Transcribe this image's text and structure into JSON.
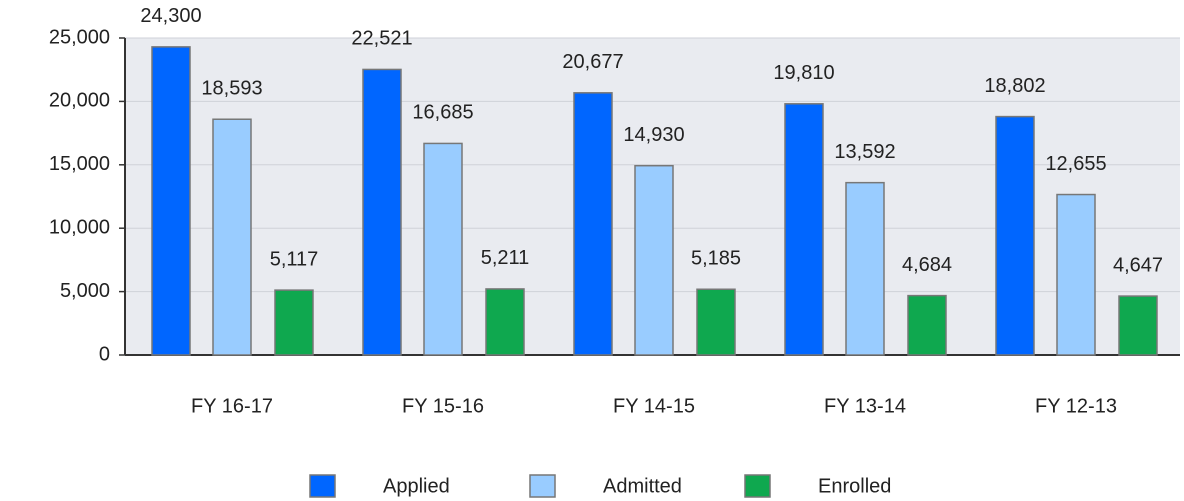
{
  "chart_data": {
    "type": "bar",
    "categories": [
      "FY 16-17",
      "FY 15-16",
      "FY 14-15",
      "FY 13-14",
      "FY 12-13"
    ],
    "series": [
      {
        "name": "Applied",
        "color": "#0066ff",
        "values": [
          24300,
          22521,
          20677,
          19810,
          18802
        ],
        "value_labels": [
          "24,300",
          "22,521",
          "20,677",
          "19,810",
          "18,802"
        ]
      },
      {
        "name": "Admitted",
        "color": "#99ccff",
        "values": [
          18593,
          16685,
          14930,
          13592,
          12655
        ],
        "value_labels": [
          "18,593",
          "16,685",
          "14,930",
          "13,592",
          "12,655"
        ]
      },
      {
        "name": "Enrolled",
        "color": "#0fa84f",
        "values": [
          5117,
          5211,
          5185,
          4684,
          4647
        ],
        "value_labels": [
          "5,117",
          "5,211",
          "5,185",
          "4,684",
          "4,647"
        ]
      }
    ],
    "ylim": [
      0,
      25000
    ],
    "yticks": [
      0,
      {
        "value": 5000,
        "label": "5,000"
      },
      {
        "value": 10000,
        "label": "10,000"
      },
      {
        "value": 15000,
        "label": "15,000"
      },
      {
        "value": 20000,
        "label": "20,000"
      },
      {
        "value": 25000,
        "label": "25,000"
      }
    ],
    "grid": true,
    "legend": "bottom"
  }
}
